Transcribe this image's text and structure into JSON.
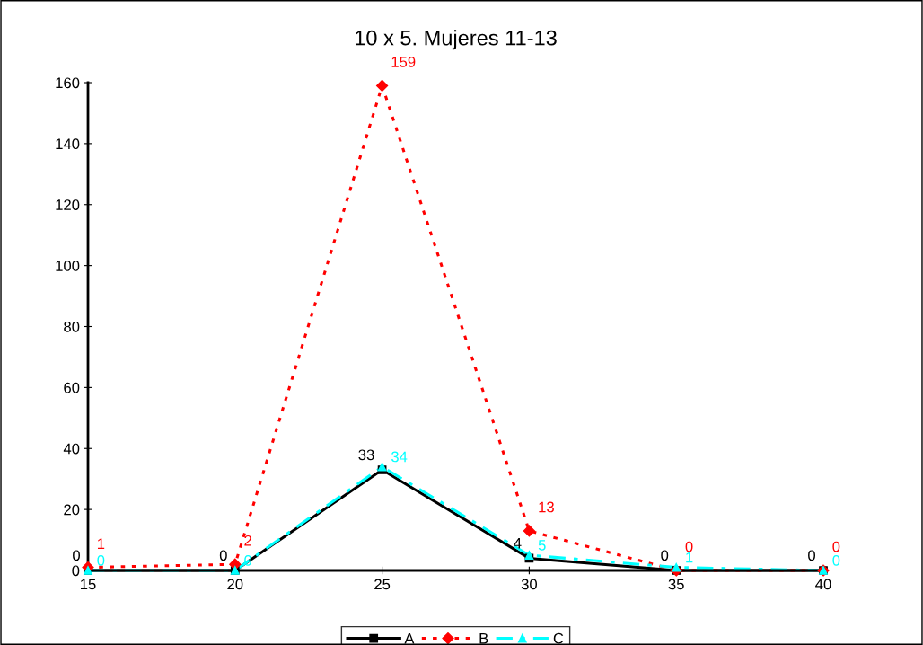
{
  "chart_data": {
    "type": "line",
    "title": "10 x 5. Mujeres 11-13",
    "x": [
      15,
      20,
      25,
      30,
      35,
      40
    ],
    "series": [
      {
        "name": "A",
        "color": "#000000",
        "marker": "square",
        "line_style": "solid",
        "values": [
          0,
          0,
          33,
          4,
          0,
          0
        ]
      },
      {
        "name": "B",
        "color": "#ff0000",
        "marker": "diamond",
        "line_style": "dotted",
        "values": [
          1,
          2,
          159,
          13,
          0,
          0
        ]
      },
      {
        "name": "C",
        "color": "#00ffff",
        "marker": "triangle",
        "line_style": "dashed",
        "values": [
          0,
          0,
          34,
          5,
          1,
          0
        ]
      }
    ],
    "xlim": [
      15,
      40
    ],
    "xticks": [
      15,
      20,
      25,
      30,
      35,
      40
    ],
    "ylim": [
      0,
      160
    ],
    "yticks": [
      0,
      20,
      40,
      60,
      80,
      100,
      120,
      140,
      160
    ],
    "grid": false,
    "legend": "bottom",
    "data_labels": true
  }
}
